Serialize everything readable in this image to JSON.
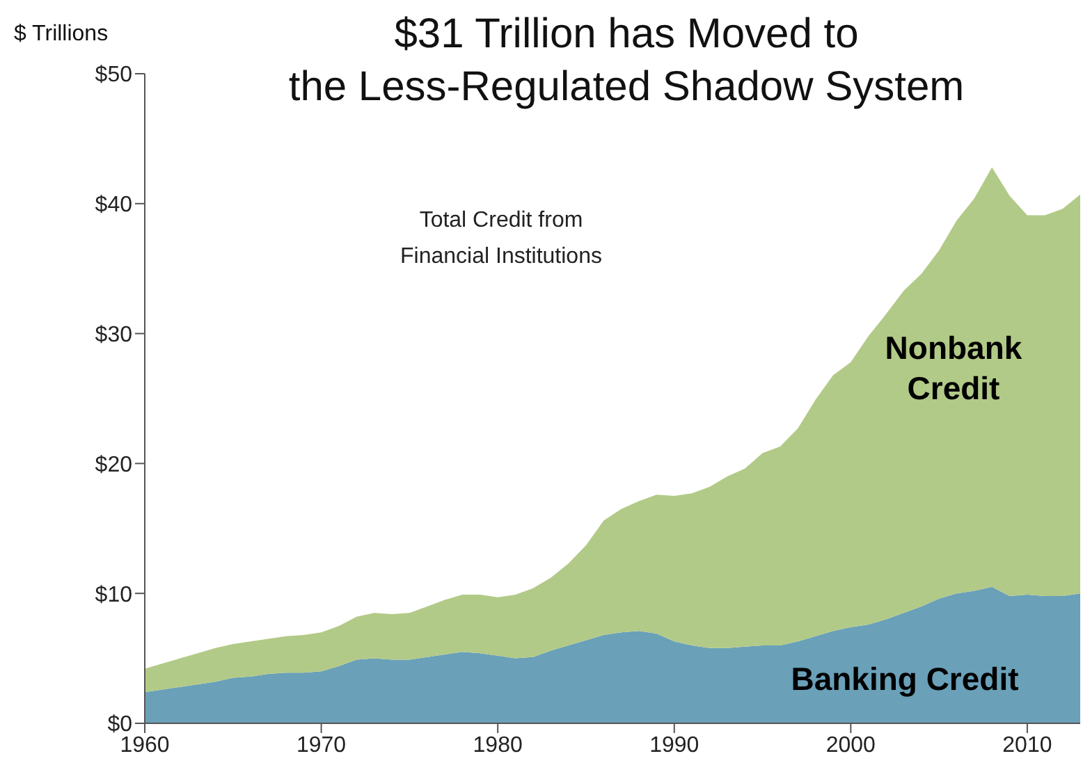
{
  "chart_data": {
    "type": "area",
    "stacked": true,
    "title": "$31 Trillion has Moved to\nthe Less-Regulated Shadow System",
    "ylabel": "$ Trillions",
    "annotations": [
      "Total Credit from\nFinancial Institutions"
    ],
    "x": [
      1960,
      1961,
      1962,
      1963,
      1964,
      1965,
      1966,
      1967,
      1968,
      1969,
      1970,
      1971,
      1972,
      1973,
      1974,
      1975,
      1976,
      1977,
      1978,
      1979,
      1980,
      1981,
      1982,
      1983,
      1984,
      1985,
      1986,
      1987,
      1988,
      1989,
      1990,
      1991,
      1992,
      1993,
      1994,
      1995,
      1996,
      1997,
      1998,
      1999,
      2000,
      2001,
      2002,
      2003,
      2004,
      2005,
      2006,
      2007,
      2008,
      2009,
      2010,
      2011,
      2012,
      2013
    ],
    "series": [
      {
        "name": "Banking Credit",
        "color": "#6aa0b8",
        "values": [
          2.4,
          2.6,
          2.8,
          3.0,
          3.2,
          3.5,
          3.6,
          3.8,
          3.9,
          3.9,
          4.0,
          4.4,
          4.9,
          5.0,
          4.9,
          4.9,
          5.1,
          5.3,
          5.5,
          5.4,
          5.2,
          5.0,
          5.1,
          5.6,
          6.0,
          6.4,
          6.8,
          7.0,
          7.1,
          6.9,
          6.3,
          6.0,
          5.8,
          5.8,
          5.9,
          6.0,
          6.0,
          6.3,
          6.7,
          7.1,
          7.4,
          7.6,
          8.0,
          8.5,
          9.0,
          9.6,
          10.0,
          10.2,
          10.5,
          9.8,
          9.9,
          9.8,
          9.8,
          10.0
        ]
      },
      {
        "name": "Nonbank\nCredit",
        "color": "#b2ca87",
        "values": [
          1.8,
          2.0,
          2.2,
          2.4,
          2.6,
          2.6,
          2.7,
          2.7,
          2.8,
          2.9,
          3.0,
          3.1,
          3.3,
          3.5,
          3.5,
          3.6,
          3.9,
          4.2,
          4.4,
          4.5,
          4.5,
          4.9,
          5.3,
          5.6,
          6.3,
          7.3,
          8.8,
          9.5,
          10.0,
          10.7,
          11.2,
          11.7,
          12.4,
          13.2,
          13.7,
          14.8,
          15.3,
          16.4,
          18.2,
          19.7,
          20.4,
          22.2,
          23.5,
          24.8,
          25.6,
          26.8,
          28.7,
          30.2,
          32.3,
          30.8,
          29.2,
          29.3,
          29.8,
          30.7
        ]
      }
    ],
    "xlim": [
      1960,
      2013
    ],
    "xticks": [
      1960,
      1970,
      1980,
      1990,
      2000,
      2010
    ],
    "ylim": [
      0,
      50
    ],
    "yticks": [
      {
        "value": 0,
        "label": "$0"
      },
      {
        "value": 10,
        "label": "$10"
      },
      {
        "value": 20,
        "label": "$20"
      },
      {
        "value": 30,
        "label": "$30"
      },
      {
        "value": 40,
        "label": "$40"
      },
      {
        "value": 50,
        "label": "$50"
      }
    ],
    "grid": false,
    "legend": false
  }
}
